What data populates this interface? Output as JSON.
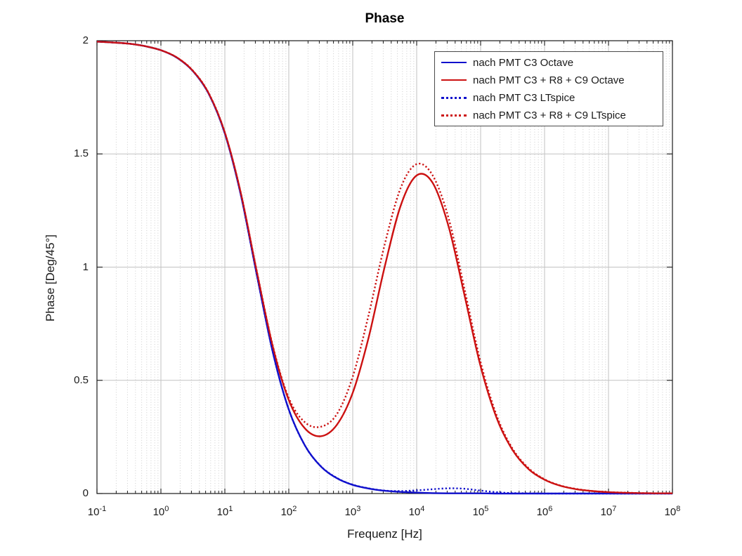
{
  "chart_data": {
    "type": "line",
    "title": "Phase",
    "xlabel": "Frequenz [Hz]",
    "ylabel": "Phase [Deg/45°]",
    "x_scale": "log10",
    "xlim_log10": [
      -1,
      8
    ],
    "ylim": [
      0,
      2
    ],
    "x_tick_exponents": [
      -1,
      0,
      1,
      2,
      3,
      4,
      5,
      6,
      7,
      8
    ],
    "y_ticks": [
      0,
      0.5,
      1,
      1.5,
      2
    ],
    "y_tick_labels": [
      "0",
      "0.5",
      "1",
      "1.5",
      "2"
    ],
    "grid": {
      "major": true,
      "minor_vertical_dotted": true
    },
    "legend_position": "top-right",
    "x_log10": [
      -1,
      -0.75,
      -0.5,
      -0.25,
      0,
      0.25,
      0.5,
      0.75,
      1,
      1.25,
      1.5,
      1.75,
      2,
      2.25,
      2.5,
      2.75,
      3,
      3.25,
      3.5,
      3.75,
      4,
      4.25,
      4.5,
      4.75,
      5,
      5.25,
      5.5,
      5.75,
      6,
      6.25,
      6.5,
      6.75,
      7,
      7.25,
      7.5,
      7.75,
      8
    ],
    "series": [
      {
        "name": "nach PMT C3 Octave",
        "color": "#1010cc",
        "style": "solid",
        "values": [
          1.996,
          1.992,
          1.987,
          1.976,
          1.958,
          1.925,
          1.866,
          1.764,
          1.59,
          1.318,
          0.966,
          0.624,
          0.371,
          0.213,
          0.12,
          0.068,
          0.038,
          0.022,
          0.012,
          0.007,
          0.004,
          0.002,
          0.001,
          0.001,
          0.001,
          0,
          0,
          0,
          0,
          0,
          0,
          0,
          0,
          0,
          0,
          0,
          0
        ]
      },
      {
        "name": "nach PMT C3 + R8 + C9 Octave",
        "color": "#cc1111",
        "style": "solid",
        "values": [
          1.996,
          1.992,
          1.987,
          1.976,
          1.958,
          1.926,
          1.867,
          1.766,
          1.594,
          1.326,
          0.979,
          0.648,
          0.413,
          0.288,
          0.253,
          0.303,
          0.445,
          0.691,
          1.002,
          1.272,
          1.405,
          1.372,
          1.179,
          0.873,
          0.562,
          0.334,
          0.192,
          0.108,
          0.061,
          0.034,
          0.019,
          0.011,
          0.006,
          0.003,
          0.002,
          0.001,
          0.001
        ]
      },
      {
        "name": "nach PMT C3 LTspice",
        "color": "#1010cc",
        "style": "dotted",
        "values": [
          1.996,
          1.992,
          1.987,
          1.976,
          1.958,
          1.925,
          1.866,
          1.764,
          1.59,
          1.318,
          0.966,
          0.624,
          0.371,
          0.213,
          0.121,
          0.069,
          0.039,
          0.023,
          0.013,
          0.011,
          0.014,
          0.019,
          0.023,
          0.021,
          0.013,
          0.006,
          0.002,
          0.001,
          0,
          0,
          0,
          0,
          0,
          0,
          0,
          0,
          0
        ]
      },
      {
        "name": "nach PMT C3 + R8 + C9 LTspice",
        "color": "#cc1111",
        "style": "dotted",
        "values": [
          1.996,
          1.992,
          1.987,
          1.976,
          1.958,
          1.926,
          1.868,
          1.767,
          1.595,
          1.327,
          0.982,
          0.652,
          0.422,
          0.315,
          0.295,
          0.35,
          0.516,
          0.791,
          1.1,
          1.35,
          1.455,
          1.405,
          1.215,
          0.9,
          0.58,
          0.345,
          0.198,
          0.112,
          0.063,
          0.035,
          0.02,
          0.011,
          0.006,
          0.004,
          0.002,
          0.001,
          0.001
        ]
      }
    ]
  }
}
